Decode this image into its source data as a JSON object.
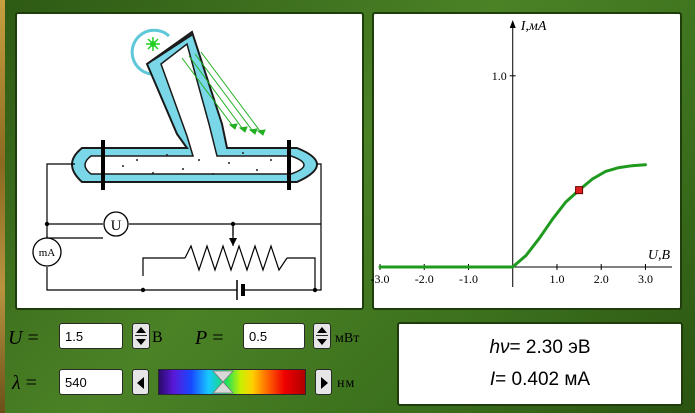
{
  "controls": {
    "voltage": {
      "symbol": "U",
      "eq": " =",
      "value": "1.5",
      "unit": "В"
    },
    "power": {
      "symbol": "P",
      "eq": " =",
      "value": "0.5",
      "unit": "мВт"
    },
    "wavelength": {
      "symbol": "λ",
      "eq": " =",
      "value": "540",
      "unit": "нм",
      "slider_fraction": 0.44
    }
  },
  "circuit": {
    "voltmeter_label": "U",
    "ammeter_label": "mA"
  },
  "results": {
    "photon_energy_symbol": "hν",
    "photon_energy": "= 2.30 эВ",
    "current_symbol": "I",
    "current": "= 0.402 мА"
  },
  "chart_data": {
    "type": "line",
    "ylabel": "I,мА",
    "xlabel": "U,В",
    "xlim": [
      -3.0,
      3.6
    ],
    "ylim": [
      0,
      1.25
    ],
    "x_ticks": [
      "-3.0",
      "-2.0",
      "-1.0",
      "1.0",
      "2.0",
      "3.0"
    ],
    "y_ticks": [
      "1.0"
    ],
    "series": [
      {
        "color": "#1f9a1f",
        "points": [
          [
            -3.0,
            0.0
          ],
          [
            -0.5,
            0.0
          ],
          [
            0.0,
            0.0
          ],
          [
            0.3,
            0.06
          ],
          [
            0.6,
            0.15
          ],
          [
            0.9,
            0.25
          ],
          [
            1.2,
            0.34
          ],
          [
            1.5,
            0.402
          ],
          [
            1.8,
            0.46
          ],
          [
            2.1,
            0.5
          ],
          [
            2.4,
            0.52
          ],
          [
            2.7,
            0.53
          ],
          [
            3.0,
            0.535
          ]
        ]
      }
    ],
    "marker": {
      "x": 1.5,
      "y": 0.402,
      "color": "#e02020"
    }
  }
}
